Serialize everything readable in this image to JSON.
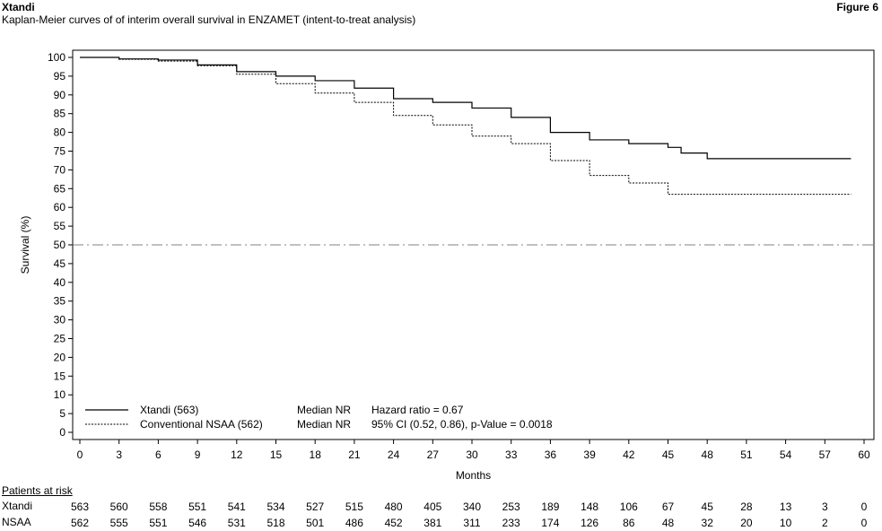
{
  "header": {
    "title": "Xtandi",
    "figure_label": "Figure 6",
    "subtitle": "Kaplan-Meier curves of of interim overall survival in ENZAMET (intent-to-treat analysis)"
  },
  "chart_data": {
    "type": "line",
    "title": "Kaplan-Meier curves of of interim overall survival in ENZAMET (intent-to-treat analysis)",
    "xlabel": "Months",
    "ylabel": "Survival (%)",
    "xlim": [
      0,
      60
    ],
    "ylim": [
      0,
      100
    ],
    "x_ticks": [
      0,
      3,
      6,
      9,
      12,
      15,
      18,
      21,
      24,
      27,
      30,
      33,
      36,
      39,
      42,
      45,
      48,
      51,
      54,
      57,
      60
    ],
    "y_ticks": [
      0,
      5,
      10,
      15,
      20,
      25,
      30,
      35,
      40,
      45,
      50,
      55,
      60,
      65,
      70,
      75,
      80,
      85,
      90,
      95,
      100
    ],
    "grid": false,
    "legend_position": "bottom-left",
    "reference_line": {
      "y": 50,
      "style": "dash-dot",
      "color": "#808080"
    },
    "series": [
      {
        "name": "Xtandi (563)",
        "style": "solid",
        "median": "Median NR",
        "stat": "Hazard ratio = 0.67",
        "x": [
          0,
          3,
          6,
          9,
          12,
          15,
          18,
          21,
          24,
          27,
          30,
          33,
          36,
          39,
          42,
          45,
          46,
          48,
          59
        ],
        "y": [
          100,
          99.6,
          99.3,
          98.0,
          96.2,
          95.0,
          93.8,
          91.8,
          89.0,
          88.0,
          86.5,
          84.0,
          80.0,
          78.0,
          77.0,
          76.0,
          74.5,
          73.0,
          73.0
        ]
      },
      {
        "name": "Conventional NSAA (562)",
        "style": "dotted",
        "median": "Median NR",
        "stat": "95% CI (0.52, 0.86), p-Value = 0.0018",
        "x": [
          0,
          3,
          6,
          9,
          12,
          15,
          18,
          21,
          24,
          27,
          30,
          33,
          36,
          39,
          42,
          45,
          59
        ],
        "y": [
          100,
          99.5,
          99.0,
          97.8,
          95.5,
          93.0,
          90.5,
          88.0,
          84.5,
          82.0,
          79.0,
          77.0,
          72.5,
          68.5,
          66.5,
          63.5,
          63.5
        ]
      }
    ]
  },
  "risk_table": {
    "label": "Patients at risk",
    "rows": [
      {
        "name": "Xtandi",
        "values": [
          "563",
          "560",
          "558",
          "551",
          "541",
          "534",
          "527",
          "515",
          "480",
          "405",
          "340",
          "253",
          "189",
          "148",
          "106",
          "67",
          "45",
          "28",
          "13",
          "3",
          "0"
        ]
      },
      {
        "name": "NSAA",
        "values": [
          "562",
          "555",
          "551",
          "546",
          "531",
          "518",
          "501",
          "486",
          "452",
          "381",
          "311",
          "233",
          "174",
          "126",
          "86",
          "48",
          "32",
          "20",
          "10",
          "2",
          "0"
        ]
      }
    ]
  }
}
